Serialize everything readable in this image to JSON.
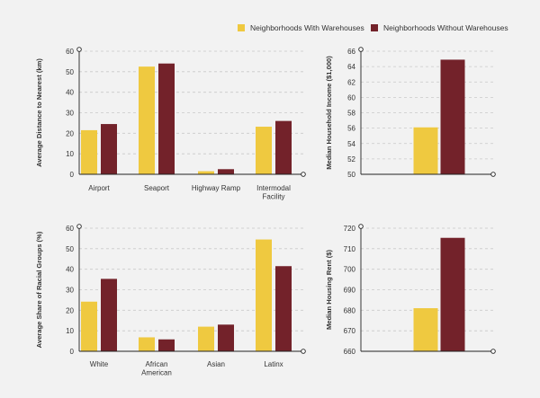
{
  "colors": {
    "with": "#efc940",
    "without": "#73222a"
  },
  "legend": [
    {
      "label": "Neighborhoods With Warehouses",
      "color": "#efc940"
    },
    {
      "label": "Neighborhoods Without Warehouses",
      "color": "#73222a"
    }
  ],
  "chart_data": [
    {
      "type": "bar",
      "ylabel": "Average Distance to Nearest (km)",
      "ylim": [
        0,
        60
      ],
      "yticks": [
        0,
        10,
        20,
        30,
        40,
        50,
        60
      ],
      "categories": [
        "Airport",
        "Seaport",
        "Highway Ramp",
        "Intermodal Facility"
      ],
      "category_lines": [
        [
          "Airport"
        ],
        [
          "Seaport"
        ],
        [
          "Highway Ramp"
        ],
        [
          "Intermodal",
          "Facility"
        ]
      ],
      "series": [
        {
          "name": "Neighborhoods With Warehouses",
          "values": [
            21.5,
            52.5,
            1.5,
            23.2
          ]
        },
        {
          "name": "Neighborhoods Without Warehouses",
          "values": [
            24.5,
            54.0,
            2.5,
            26.0
          ]
        }
      ],
      "grid": true
    },
    {
      "type": "bar",
      "ylabel": "Median Household Income ($1,000)",
      "ylim": [
        50,
        66
      ],
      "yticks": [
        50,
        52,
        54,
        56,
        58,
        60,
        62,
        64,
        66
      ],
      "categories": [
        ""
      ],
      "category_lines": [
        []
      ],
      "series": [
        {
          "name": "Neighborhoods With Warehouses",
          "values": [
            56.1
          ]
        },
        {
          "name": "Neighborhoods Without Warehouses",
          "values": [
            64.9
          ]
        }
      ],
      "grid": true
    },
    {
      "type": "bar",
      "ylabel": "Average Share of Racial Groups (%)",
      "ylim": [
        0,
        60
      ],
      "yticks": [
        0,
        10,
        20,
        30,
        40,
        50,
        60
      ],
      "categories": [
        "White",
        "African American",
        "Asian",
        "Latinx"
      ],
      "category_lines": [
        [
          "White"
        ],
        [
          "African",
          "American"
        ],
        [
          "Asian"
        ],
        [
          "Latinx"
        ]
      ],
      "series": [
        {
          "name": "Neighborhoods With Warehouses",
          "values": [
            24.2,
            6.8,
            12.0,
            54.5
          ]
        },
        {
          "name": "Neighborhoods Without Warehouses",
          "values": [
            35.3,
            5.8,
            13.0,
            41.5
          ]
        }
      ],
      "grid": true
    },
    {
      "type": "bar",
      "ylabel": "Median Housing Rent ($)",
      "ylim": [
        660,
        720
      ],
      "yticks": [
        660,
        670,
        680,
        690,
        700,
        710,
        720
      ],
      "categories": [
        ""
      ],
      "category_lines": [
        []
      ],
      "series": [
        {
          "name": "Neighborhoods With Warehouses",
          "values": [
            681.0
          ]
        },
        {
          "name": "Neighborhoods Without Warehouses",
          "values": [
            715.3
          ]
        }
      ],
      "grid": true
    }
  ]
}
